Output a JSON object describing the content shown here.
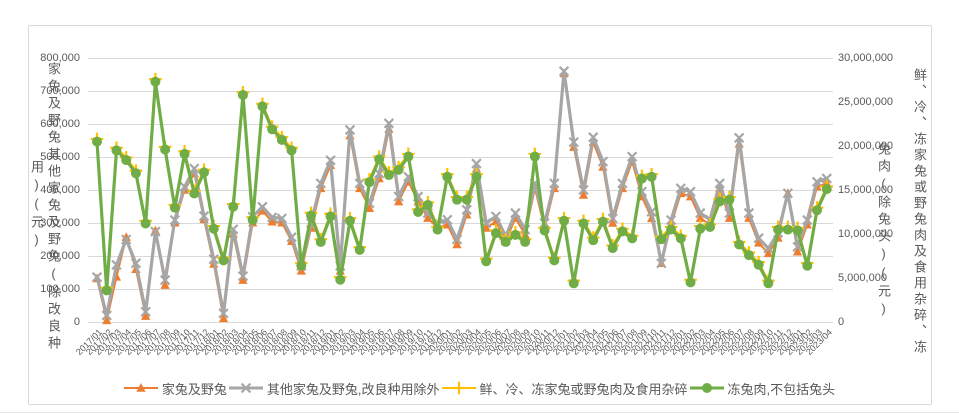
{
  "chart_data": {
    "type": "line",
    "title": "",
    "categories": [
      "2017/01",
      "2017/02",
      "2017/03",
      "2017/04",
      "2017/05",
      "2017/06",
      "2017/07",
      "2017/08",
      "2017/09",
      "2017/10",
      "2017/11",
      "2017/12",
      "2018/01",
      "2018/02",
      "2018/03",
      "2018/04",
      "2018/05",
      "2018/06",
      "2018/07",
      "2018/08",
      "2018/09",
      "2018/10",
      "2018/11",
      "2018/12",
      "2019/01",
      "2019/02",
      "2019/03",
      "2019/04",
      "2019/05",
      "2019/06",
      "2019/07",
      "2019/08",
      "2019/09",
      "2019/10",
      "2019/11",
      "2019/12",
      "2020/01",
      "2020/02",
      "2020/03",
      "2020/04",
      "2020/05",
      "2020/06",
      "2020/07",
      "2020/08",
      "2020/09",
      "2020/10",
      "2020/11",
      "2020/12",
      "2021/01",
      "2021/02",
      "2021/03",
      "2021/04",
      "2021/05",
      "2021/06",
      "2021/07",
      "2021/08",
      "2021/09",
      "2021/10",
      "2021/11",
      "2021/12",
      "2022/01",
      "2022/02",
      "2022/03",
      "2022/04",
      "2022/05",
      "2022/06",
      "2022/07",
      "2022/08",
      "2022/09",
      "2022/10",
      "2022/11",
      "2022/12",
      "2023/01",
      "2023/02",
      "2023/03",
      "2023/04"
    ],
    "series": [
      {
        "name": "家兔及野兔",
        "axis": "left",
        "color": "#ED7D31",
        "marker": "triangle",
        "values": [
          132000,
          5000,
          137000,
          257000,
          160000,
          18000,
          277000,
          112000,
          301000,
          400000,
          450000,
          311000,
          176000,
          11000,
          267000,
          127000,
          301000,
          337000,
          304000,
          301000,
          245000,
          155000,
          285000,
          405000,
          475000,
          155000,
          565000,
          405000,
          345000,
          435000,
          585000,
          365000,
          425000,
          365000,
          315000,
          285000,
          295000,
          235000,
          325000,
          465000,
          285000,
          305000,
          245000,
          315000,
          265000,
          405000,
          285000,
          405000,
          753000,
          530000,
          385000,
          545000,
          470000,
          300000,
          405000,
          486000,
          380000,
          314000,
          178000,
          295000,
          390000,
          380000,
          315000,
          295000,
          405000,
          315000,
          540000,
          315000,
          240000,
          208000,
          255000,
          390000,
          213000,
          295000,
          410000,
          420000
        ]
      },
      {
        "name": "其他家兔及野兔,改良种用除外",
        "axis": "left",
        "color": "#A6A6A6",
        "marker": "x",
        "values": [
          136000,
          20000,
          173000,
          250000,
          178000,
          31000,
          274000,
          127000,
          309000,
          410000,
          465000,
          321000,
          190000,
          26000,
          281000,
          139000,
          319000,
          349000,
          317000,
          314000,
          257000,
          170000,
          300000,
          420000,
          490000,
          170000,
          582000,
          420000,
          360000,
          450000,
          602000,
          380000,
          440000,
          380000,
          330000,
          300000,
          310000,
          250000,
          340000,
          480000,
          300000,
          320000,
          260000,
          330000,
          280000,
          420000,
          300000,
          420000,
          760000,
          545000,
          400000,
          560000,
          486000,
          314000,
          420000,
          501000,
          395000,
          334000,
          178000,
          309000,
          405000,
          395000,
          330000,
          310000,
          420000,
          330000,
          558000,
          330000,
          254000,
          223000,
          270000,
          390000,
          228000,
          309000,
          425000,
          435000
        ]
      },
      {
        "name": "鲜、冷、冻家兔或野兔肉及食用杂碎",
        "axis": "right",
        "color": "#FFC000",
        "marker": "plus",
        "values": [
          20800000,
          3900000,
          19800000,
          18700000,
          17200000,
          11500000,
          27600000,
          19900000,
          13300000,
          19400000,
          14900000,
          17300000,
          10900000,
          7300000,
          13400000,
          26100000,
          11900000,
          24800000,
          22200000,
          21000000,
          19800000,
          6700000,
          12400000,
          9400000,
          12300000,
          5100000,
          11800000,
          8500000,
          16200000,
          18800000,
          17000000,
          17600000,
          19100000,
          12800000,
          13600000,
          10800000,
          16800000,
          14200000,
          14200000,
          16800000,
          7200000,
          10400000,
          9400000,
          10200000,
          9400000,
          19100000,
          10700000,
          7300000,
          11800000,
          4700000,
          11500000,
          9600000,
          11700000,
          8700000,
          10600000,
          9800000,
          16600000,
          16800000,
          9700000,
          10800000,
          9800000,
          4800000,
          10900000,
          11100000,
          14000000,
          14200000,
          9100000,
          7900000,
          6800000,
          4700000,
          10800000,
          10800000,
          10700000,
          6700000,
          13000000,
          15400000
        ]
      },
      {
        "name": "冻兔肉,不包括兔头",
        "axis": "right",
        "color": "#70AD47",
        "marker": "circle",
        "values": [
          20500000,
          3600000,
          19500000,
          18400000,
          16900000,
          11200000,
          27300000,
          19600000,
          13000000,
          19100000,
          14600000,
          17000000,
          10600000,
          7000000,
          13100000,
          25800000,
          11600000,
          24500000,
          21900000,
          20700000,
          19500000,
          6400000,
          12100000,
          9100000,
          12000000,
          4800000,
          11500000,
          8200000,
          15900000,
          18500000,
          16700000,
          17300000,
          18800000,
          12500000,
          13300000,
          10500000,
          16500000,
          13900000,
          13900000,
          16500000,
          6900000,
          10100000,
          9100000,
          9900000,
          9100000,
          18800000,
          10400000,
          7000000,
          11500000,
          4400000,
          11200000,
          9300000,
          11400000,
          8400000,
          10300000,
          9500000,
          16300000,
          16500000,
          9400000,
          10500000,
          9500000,
          4500000,
          10600000,
          10800000,
          13700000,
          13900000,
          8800000,
          7600000,
          6500000,
          4400000,
          10500000,
          10500000,
          10400000,
          6400000,
          12700000,
          15100000
        ]
      }
    ],
    "left_axis": {
      "title": "家兔及野兔 其他家兔及野兔(除改良种用)(元)",
      "min": 0,
      "max": 800000,
      "tick_labels": [
        "800,000",
        "700,000",
        "600,000",
        "500,000",
        "400,000",
        "300,000",
        "200,000",
        "100,000",
        "0"
      ]
    },
    "right_axis": {
      "title": "鲜、冷、冻家兔或野兔肉及食用杂碎、冻兔肉(除兔头)(元)",
      "min": 0,
      "max": 30000000,
      "tick_labels": [
        "30,000,000",
        "25,000,000",
        "20,000,000",
        "15,000,000",
        "10,000,000",
        "5,000,000",
        "0"
      ]
    },
    "x_axis": {
      "label_format": "YYYY/MM",
      "label_rotation": -45
    },
    "legend": {
      "position": "bottom",
      "items": [
        "家兔及野兔",
        "其他家兔及野兔,改良种用除外",
        "鲜、冷、冻家兔或野兔肉及食用杂碎",
        "冻兔肉,不包括兔头"
      ]
    },
    "grid": true
  },
  "axis_title_columns": {
    "left_col1": "家兔及野兔其他家兔及野兔(除改良种",
    "left_col2": "用)(元)",
    "right_col1": "鲜、冷、冻家兔或野兔肉及食用杂碎、冻",
    "right_col2": "兔肉(除兔头)(元)"
  },
  "colors": {
    "grid": "#D9D9D9",
    "frame_border": "#D9D9D9",
    "tick_text": "#595959",
    "background": "#FFFFFF",
    "series_orange": "#ED7D31",
    "series_gray": "#A6A6A6",
    "series_yellow": "#FFC000",
    "series_green": "#70AD47"
  }
}
